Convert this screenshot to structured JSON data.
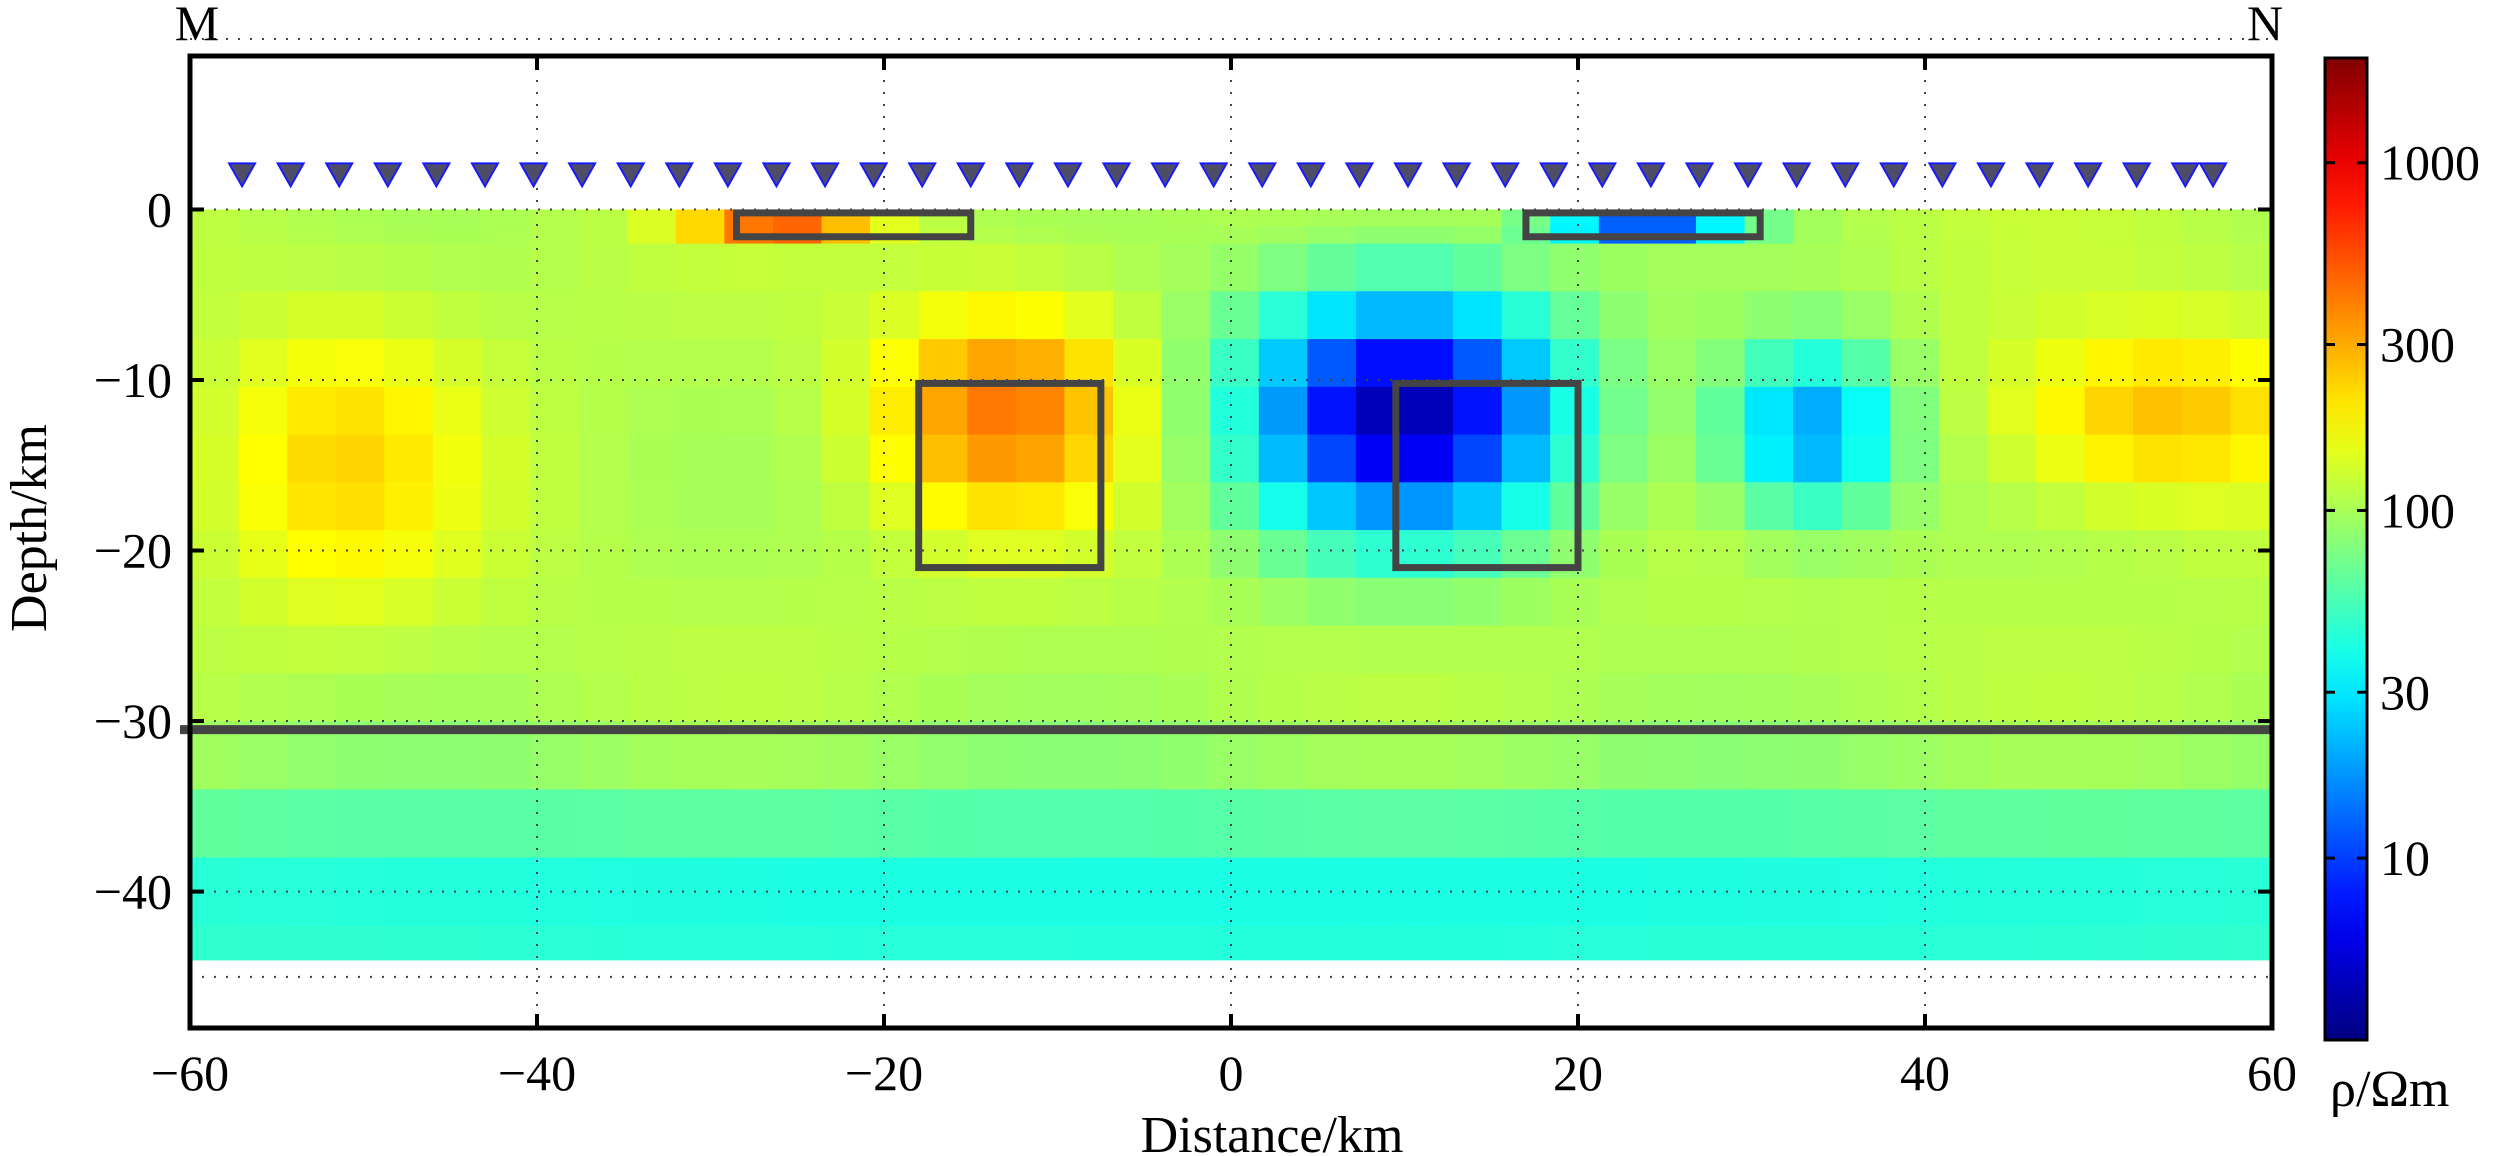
{
  "chart_data": {
    "type": "heatmap",
    "title": "",
    "xlabel": "Distance/km",
    "ylabel": "Depth/km",
    "xlim": [
      -60,
      60
    ],
    "ylim": [
      -48,
      9
    ],
    "x_ticks": [
      -60,
      -40,
      -20,
      0,
      20,
      40,
      60
    ],
    "x_tick_labels": [
      "−60",
      "−40",
      "−20",
      "0",
      "20",
      "40",
      "60"
    ],
    "y_ticks": [
      0,
      -10,
      -20,
      -30,
      -40
    ],
    "y_tick_labels": [
      "0",
      "−10",
      "−20",
      "−30",
      "−40"
    ],
    "grid": "dotted",
    "profile_start_label": "M",
    "profile_end_label": "N",
    "colorbar": {
      "label": "ρ/Ωm",
      "scale": "log",
      "min": 3,
      "max": 2000,
      "ticks": [
        10,
        30,
        100,
        300,
        1000
      ],
      "tick_labels": [
        "10",
        "30",
        "100",
        "300",
        "1000"
      ],
      "colormap": "jet"
    },
    "model_extent": {
      "x": [
        -60,
        60
      ],
      "depth_top": 0,
      "depth_bottom": -44
    },
    "background_resistivity": 110,
    "anomalies": [
      {
        "name": "upper-crust conductor",
        "x": 10,
        "depth": -12,
        "rx": 9,
        "rz": 7,
        "rho": 4
      },
      {
        "name": "upper-crust conductor east",
        "x": 33.5,
        "depth": -13,
        "rx": 5,
        "rz": 5,
        "rho": 18
      },
      {
        "name": "resistor central-west",
        "x": -13,
        "depth": -12,
        "rx": 7,
        "rz": 6,
        "rho": 420
      },
      {
        "name": "resistor west",
        "x": -51,
        "depth": -15,
        "rx": 7,
        "rz": 8,
        "rho": 230
      },
      {
        "name": "resistor east",
        "x": 54,
        "depth": -12,
        "rx": 9,
        "rz": 5,
        "rho": 260
      },
      {
        "name": "lower-crust layer",
        "x": 0,
        "depth": -41,
        "rx": 200,
        "rz": 7,
        "rho": 40
      }
    ],
    "stations": [
      -57,
      -54.2,
      -51.4,
      -48.6,
      -45.8,
      -43,
      -40.2,
      -37.4,
      -34.6,
      -31.8,
      -29,
      -26.2,
      -23.4,
      -20.6,
      -17.8,
      -15,
      -12.2,
      -9.4,
      -6.6,
      -3.8,
      -1,
      1.8,
      4.6,
      7.4,
      10.2,
      13,
      15.8,
      18.6,
      21.4,
      24.2,
      27,
      29.8,
      32.6,
      35.4,
      38.2,
      41,
      43.8,
      46.6,
      49.4,
      52.2,
      55,
      56.6
    ],
    "station_elevation": 2,
    "boxes": [
      {
        "name": "shallow box west",
        "x1": -28.5,
        "x2": -15,
        "y1": -0.2,
        "y2": -1.6
      },
      {
        "name": "shallow box east",
        "x1": 17,
        "x2": 30.5,
        "y1": -0.2,
        "y2": -1.6
      },
      {
        "name": "resistor box",
        "x1": -18,
        "x2": -7.5,
        "y1": -10.2,
        "y2": -21
      },
      {
        "name": "conductor box",
        "x1": 9.5,
        "x2": 20,
        "y1": -10.2,
        "y2": -21
      }
    ],
    "moho_line": {
      "depth": -30.5
    }
  }
}
